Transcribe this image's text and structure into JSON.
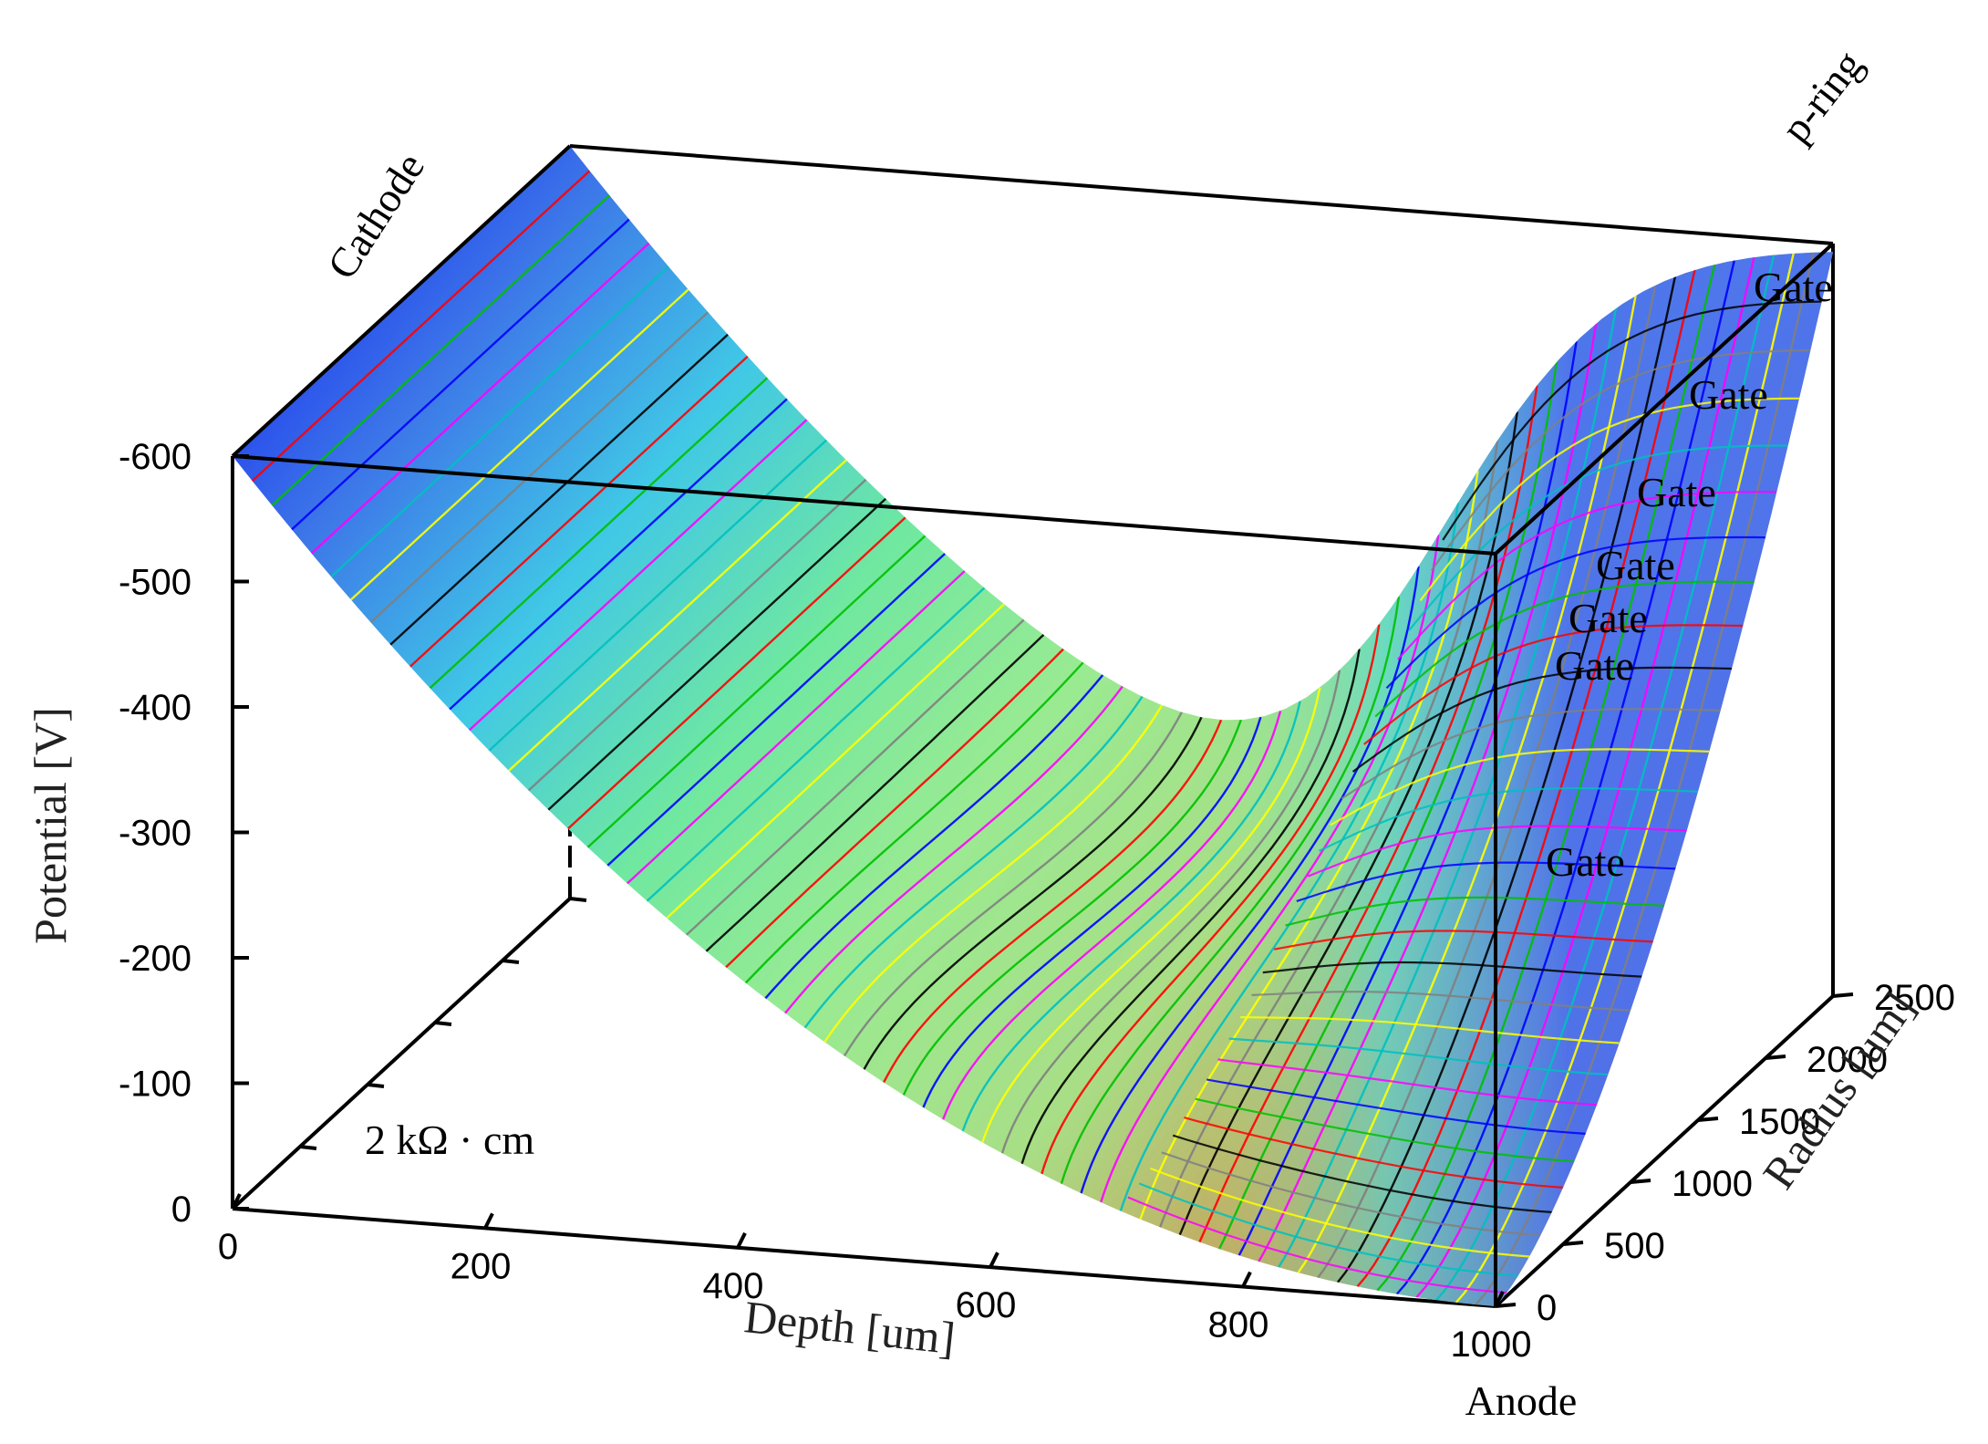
{
  "chart_data": {
    "type": "surface",
    "zlabel": "Potential [V]",
    "xlabel": "Depth [um]",
    "ylabel": "Radius [um]",
    "z_ticks": [
      "-600",
      "-500",
      "-400",
      "-300",
      "-200",
      "-100",
      "0"
    ],
    "x_ticks": [
      "0",
      "200",
      "400",
      "600",
      "800",
      "1000"
    ],
    "y_ticks": [
      "0",
      "500",
      "1000",
      "1500",
      "2000",
      "2500"
    ],
    "xlim": [
      0,
      1000
    ],
    "ylim": [
      0,
      2500
    ],
    "zlim": [
      0,
      -600
    ],
    "corner_potentials": [
      {
        "depth": 0,
        "radius": 0,
        "potential": -600
      },
      {
        "depth": 1000,
        "radius": 0,
        "potential": 0
      },
      {
        "depth": 0,
        "radius": 2500,
        "potential": -600
      },
      {
        "depth": 1000,
        "radius": 2500,
        "potential": -600
      }
    ],
    "saddle_potential": -340,
    "annotations": {
      "cathode": "Cathode",
      "anode": "Anode",
      "pring": "p-ring",
      "resistivity": "2 kΩ · cm",
      "gates": [
        "Gate",
        "Gate",
        "Gate",
        "Gate",
        "Gate",
        "Gate",
        "Gate"
      ]
    },
    "contour_colors": [
      "#000000",
      "#ff0000",
      "#00c000",
      "#0000ff",
      "#ff00ff",
      "#00c0c0",
      "#ffff00",
      "#808080"
    ]
  }
}
